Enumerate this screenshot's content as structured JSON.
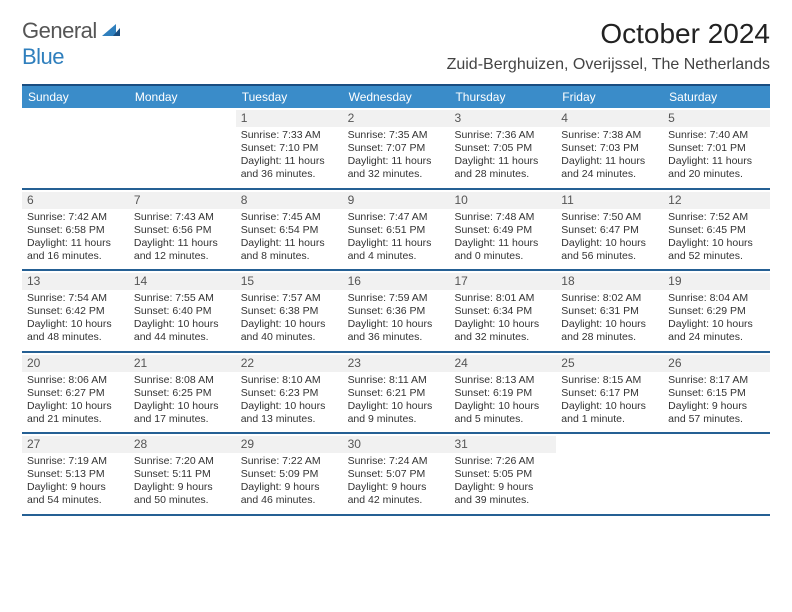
{
  "brand": {
    "word1": "General",
    "word2": "Blue"
  },
  "title": "October 2024",
  "location": "Zuid-Berghuizen, Overijssel, The Netherlands",
  "colors": {
    "header_bg": "#3a8cc9",
    "rule": "#256094",
    "top_rule": "#1a4d80",
    "daynum_bg": "#f1f1f1",
    "brand_gray": "#555",
    "brand_blue": "#2f7fbd"
  },
  "day_headers": [
    "Sunday",
    "Monday",
    "Tuesday",
    "Wednesday",
    "Thursday",
    "Friday",
    "Saturday"
  ],
  "weeks": [
    [
      null,
      null,
      {
        "n": "1",
        "sr": "Sunrise: 7:33 AM",
        "ss": "Sunset: 7:10 PM",
        "d1": "Daylight: 11 hours",
        "d2": "and 36 minutes."
      },
      {
        "n": "2",
        "sr": "Sunrise: 7:35 AM",
        "ss": "Sunset: 7:07 PM",
        "d1": "Daylight: 11 hours",
        "d2": "and 32 minutes."
      },
      {
        "n": "3",
        "sr": "Sunrise: 7:36 AM",
        "ss": "Sunset: 7:05 PM",
        "d1": "Daylight: 11 hours",
        "d2": "and 28 minutes."
      },
      {
        "n": "4",
        "sr": "Sunrise: 7:38 AM",
        "ss": "Sunset: 7:03 PM",
        "d1": "Daylight: 11 hours",
        "d2": "and 24 minutes."
      },
      {
        "n": "5",
        "sr": "Sunrise: 7:40 AM",
        "ss": "Sunset: 7:01 PM",
        "d1": "Daylight: 11 hours",
        "d2": "and 20 minutes."
      }
    ],
    [
      {
        "n": "6",
        "sr": "Sunrise: 7:42 AM",
        "ss": "Sunset: 6:58 PM",
        "d1": "Daylight: 11 hours",
        "d2": "and 16 minutes."
      },
      {
        "n": "7",
        "sr": "Sunrise: 7:43 AM",
        "ss": "Sunset: 6:56 PM",
        "d1": "Daylight: 11 hours",
        "d2": "and 12 minutes."
      },
      {
        "n": "8",
        "sr": "Sunrise: 7:45 AM",
        "ss": "Sunset: 6:54 PM",
        "d1": "Daylight: 11 hours",
        "d2": "and 8 minutes."
      },
      {
        "n": "9",
        "sr": "Sunrise: 7:47 AM",
        "ss": "Sunset: 6:51 PM",
        "d1": "Daylight: 11 hours",
        "d2": "and 4 minutes."
      },
      {
        "n": "10",
        "sr": "Sunrise: 7:48 AM",
        "ss": "Sunset: 6:49 PM",
        "d1": "Daylight: 11 hours",
        "d2": "and 0 minutes."
      },
      {
        "n": "11",
        "sr": "Sunrise: 7:50 AM",
        "ss": "Sunset: 6:47 PM",
        "d1": "Daylight: 10 hours",
        "d2": "and 56 minutes."
      },
      {
        "n": "12",
        "sr": "Sunrise: 7:52 AM",
        "ss": "Sunset: 6:45 PM",
        "d1": "Daylight: 10 hours",
        "d2": "and 52 minutes."
      }
    ],
    [
      {
        "n": "13",
        "sr": "Sunrise: 7:54 AM",
        "ss": "Sunset: 6:42 PM",
        "d1": "Daylight: 10 hours",
        "d2": "and 48 minutes."
      },
      {
        "n": "14",
        "sr": "Sunrise: 7:55 AM",
        "ss": "Sunset: 6:40 PM",
        "d1": "Daylight: 10 hours",
        "d2": "and 44 minutes."
      },
      {
        "n": "15",
        "sr": "Sunrise: 7:57 AM",
        "ss": "Sunset: 6:38 PM",
        "d1": "Daylight: 10 hours",
        "d2": "and 40 minutes."
      },
      {
        "n": "16",
        "sr": "Sunrise: 7:59 AM",
        "ss": "Sunset: 6:36 PM",
        "d1": "Daylight: 10 hours",
        "d2": "and 36 minutes."
      },
      {
        "n": "17",
        "sr": "Sunrise: 8:01 AM",
        "ss": "Sunset: 6:34 PM",
        "d1": "Daylight: 10 hours",
        "d2": "and 32 minutes."
      },
      {
        "n": "18",
        "sr": "Sunrise: 8:02 AM",
        "ss": "Sunset: 6:31 PM",
        "d1": "Daylight: 10 hours",
        "d2": "and 28 minutes."
      },
      {
        "n": "19",
        "sr": "Sunrise: 8:04 AM",
        "ss": "Sunset: 6:29 PM",
        "d1": "Daylight: 10 hours",
        "d2": "and 24 minutes."
      }
    ],
    [
      {
        "n": "20",
        "sr": "Sunrise: 8:06 AM",
        "ss": "Sunset: 6:27 PM",
        "d1": "Daylight: 10 hours",
        "d2": "and 21 minutes."
      },
      {
        "n": "21",
        "sr": "Sunrise: 8:08 AM",
        "ss": "Sunset: 6:25 PM",
        "d1": "Daylight: 10 hours",
        "d2": "and 17 minutes."
      },
      {
        "n": "22",
        "sr": "Sunrise: 8:10 AM",
        "ss": "Sunset: 6:23 PM",
        "d1": "Daylight: 10 hours",
        "d2": "and 13 minutes."
      },
      {
        "n": "23",
        "sr": "Sunrise: 8:11 AM",
        "ss": "Sunset: 6:21 PM",
        "d1": "Daylight: 10 hours",
        "d2": "and 9 minutes."
      },
      {
        "n": "24",
        "sr": "Sunrise: 8:13 AM",
        "ss": "Sunset: 6:19 PM",
        "d1": "Daylight: 10 hours",
        "d2": "and 5 minutes."
      },
      {
        "n": "25",
        "sr": "Sunrise: 8:15 AM",
        "ss": "Sunset: 6:17 PM",
        "d1": "Daylight: 10 hours",
        "d2": "and 1 minute."
      },
      {
        "n": "26",
        "sr": "Sunrise: 8:17 AM",
        "ss": "Sunset: 6:15 PM",
        "d1": "Daylight: 9 hours",
        "d2": "and 57 minutes."
      }
    ],
    [
      {
        "n": "27",
        "sr": "Sunrise: 7:19 AM",
        "ss": "Sunset: 5:13 PM",
        "d1": "Daylight: 9 hours",
        "d2": "and 54 minutes."
      },
      {
        "n": "28",
        "sr": "Sunrise: 7:20 AM",
        "ss": "Sunset: 5:11 PM",
        "d1": "Daylight: 9 hours",
        "d2": "and 50 minutes."
      },
      {
        "n": "29",
        "sr": "Sunrise: 7:22 AM",
        "ss": "Sunset: 5:09 PM",
        "d1": "Daylight: 9 hours",
        "d2": "and 46 minutes."
      },
      {
        "n": "30",
        "sr": "Sunrise: 7:24 AM",
        "ss": "Sunset: 5:07 PM",
        "d1": "Daylight: 9 hours",
        "d2": "and 42 minutes."
      },
      {
        "n": "31",
        "sr": "Sunrise: 7:26 AM",
        "ss": "Sunset: 5:05 PM",
        "d1": "Daylight: 9 hours",
        "d2": "and 39 minutes."
      },
      null,
      null
    ]
  ]
}
